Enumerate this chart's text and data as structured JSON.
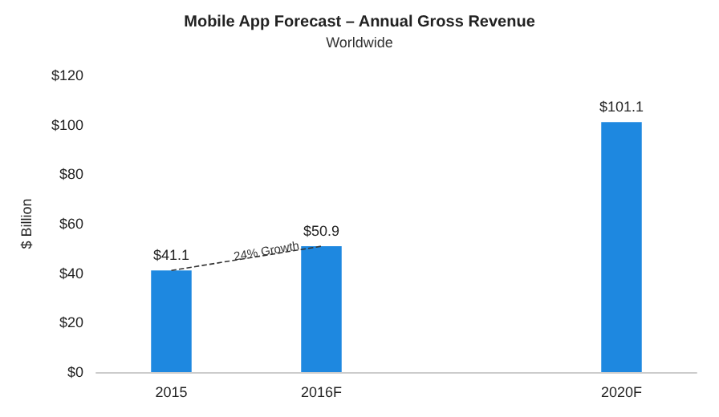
{
  "chart_data": {
    "type": "bar",
    "title": "Mobile App Forecast – Annual Gross Revenue",
    "subtitle": "Worldwide",
    "ylabel": "$ Billion",
    "categories": [
      "2015",
      "2016F",
      null,
      "2020F"
    ],
    "series": [
      {
        "color": "#1e88e0",
        "values": [
          41.1,
          50.9,
          null,
          101.1
        ],
        "value_labels": [
          "$41.1",
          "$50.9",
          null,
          "$101.1"
        ]
      },
      {
        "type": "line",
        "color": "#333333",
        "line_style": "dashed",
        "marker": "none",
        "values": [
          41.1,
          50.9,
          null,
          null
        ]
      }
    ],
    "annotations": [
      "24% Growth"
    ],
    "ylim": [
      0,
      120
    ],
    "yticks": [
      {
        "value": 0,
        "label": "$0"
      },
      {
        "value": 20,
        "label": "$20"
      },
      {
        "value": 40,
        "label": "$40"
      },
      {
        "value": 60,
        "label": "$60"
      },
      {
        "value": 80,
        "label": "$80"
      },
      {
        "value": 100,
        "label": "$100"
      },
      {
        "value": 120,
        "label": "$120"
      }
    ],
    "grid": false
  }
}
